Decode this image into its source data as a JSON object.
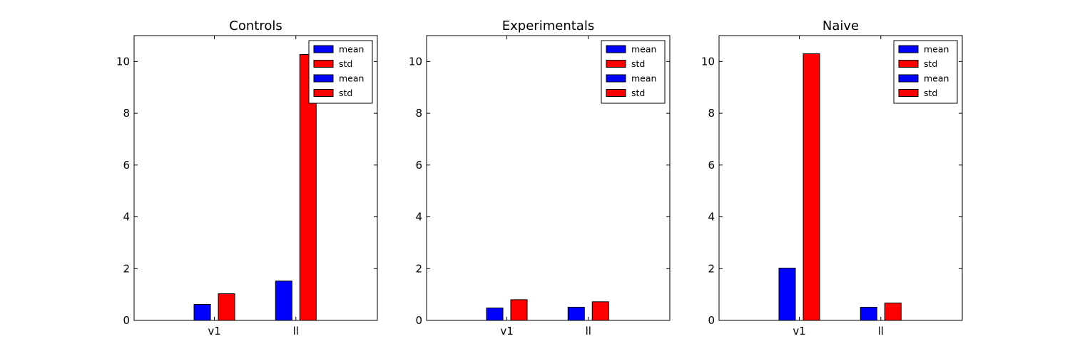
{
  "chart_data": [
    {
      "type": "bar",
      "title": "Controls",
      "categories": [
        "v1",
        "ll"
      ],
      "ylim": [
        0,
        11
      ],
      "yticks": [
        0,
        2,
        4,
        6,
        8,
        10
      ],
      "series": [
        {
          "name": "mean",
          "color": "#0000ff",
          "values": [
            0.62,
            1.52
          ]
        },
        {
          "name": "std",
          "color": "#ff0000",
          "values": [
            1.03,
            10.27
          ]
        }
      ],
      "legend": {
        "placement": "upper-right",
        "entries": [
          {
            "label": "mean",
            "color": "#0000ff"
          },
          {
            "label": "std",
            "color": "#ff0000"
          },
          {
            "label": "mean",
            "color": "#0000ff"
          },
          {
            "label": "std",
            "color": "#ff0000"
          }
        ]
      }
    },
    {
      "type": "bar",
      "title": "Experimentals",
      "categories": [
        "v1",
        "ll"
      ],
      "ylim": [
        0,
        11
      ],
      "yticks": [
        0,
        2,
        4,
        6,
        8,
        10
      ],
      "series": [
        {
          "name": "mean",
          "color": "#0000ff",
          "values": [
            0.48,
            0.51
          ]
        },
        {
          "name": "std",
          "color": "#ff0000",
          "values": [
            0.8,
            0.72
          ]
        }
      ],
      "legend": {
        "placement": "upper-right",
        "entries": [
          {
            "label": "mean",
            "color": "#0000ff"
          },
          {
            "label": "std",
            "color": "#ff0000"
          },
          {
            "label": "mean",
            "color": "#0000ff"
          },
          {
            "label": "std",
            "color": "#ff0000"
          }
        ]
      }
    },
    {
      "type": "bar",
      "title": "Naive",
      "categories": [
        "v1",
        "ll"
      ],
      "ylim": [
        0,
        11
      ],
      "yticks": [
        0,
        2,
        4,
        6,
        8,
        10
      ],
      "series": [
        {
          "name": "mean",
          "color": "#0000ff",
          "values": [
            2.02,
            0.51
          ]
        },
        {
          "name": "std",
          "color": "#ff0000",
          "values": [
            10.3,
            0.67
          ]
        }
      ],
      "legend": {
        "placement": "upper-right",
        "entries": [
          {
            "label": "mean",
            "color": "#0000ff"
          },
          {
            "label": "std",
            "color": "#ff0000"
          },
          {
            "label": "mean",
            "color": "#0000ff"
          },
          {
            "label": "std",
            "color": "#ff0000"
          }
        ]
      }
    }
  ]
}
